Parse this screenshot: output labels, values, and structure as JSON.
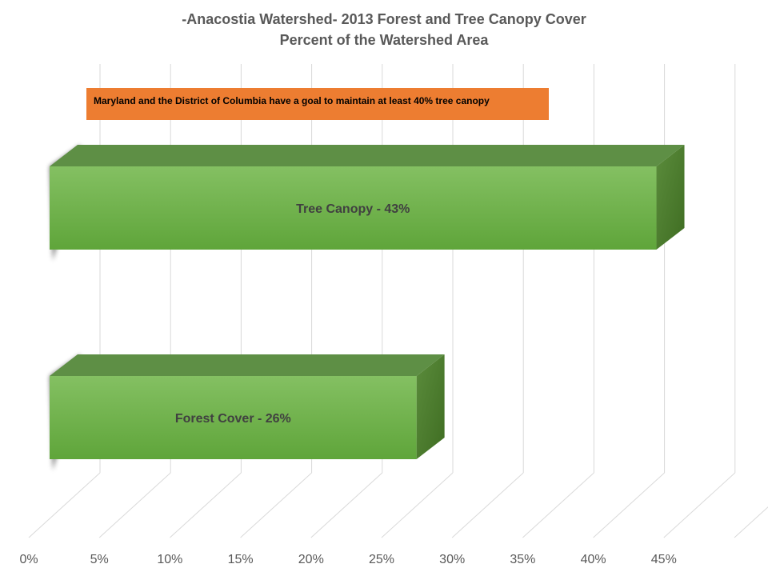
{
  "chart_data": {
    "type": "bar",
    "orientation": "horizontal",
    "style": "3d",
    "title_line1": "-Anacostia  Watershed-  2013 Forest and Tree Canopy Cover",
    "title_line2": "Percent of the Watershed  Area",
    "categories": [
      "Tree Canopy",
      "Forest Cover"
    ],
    "values": [
      43,
      26
    ],
    "data_labels": [
      "Tree Canopy - 43%",
      "Forest Cover - 26%"
    ],
    "xlim": [
      0,
      50
    ],
    "xticks": [
      "0%",
      "5%",
      "10%",
      "15%",
      "20%",
      "25%",
      "30%",
      "35%",
      "40%",
      "45%"
    ],
    "grid": true,
    "annotation": "Maryland and the District of Columbia have a goal to maintain at least 40% tree canopy",
    "colors": {
      "bar_front": "#70ad47",
      "bar_top": "#5e8f45",
      "bar_side": "#4a7a2f",
      "annotation_bg": "#ed7d31",
      "grid": "#d9d9d9",
      "text": "#595959"
    }
  }
}
